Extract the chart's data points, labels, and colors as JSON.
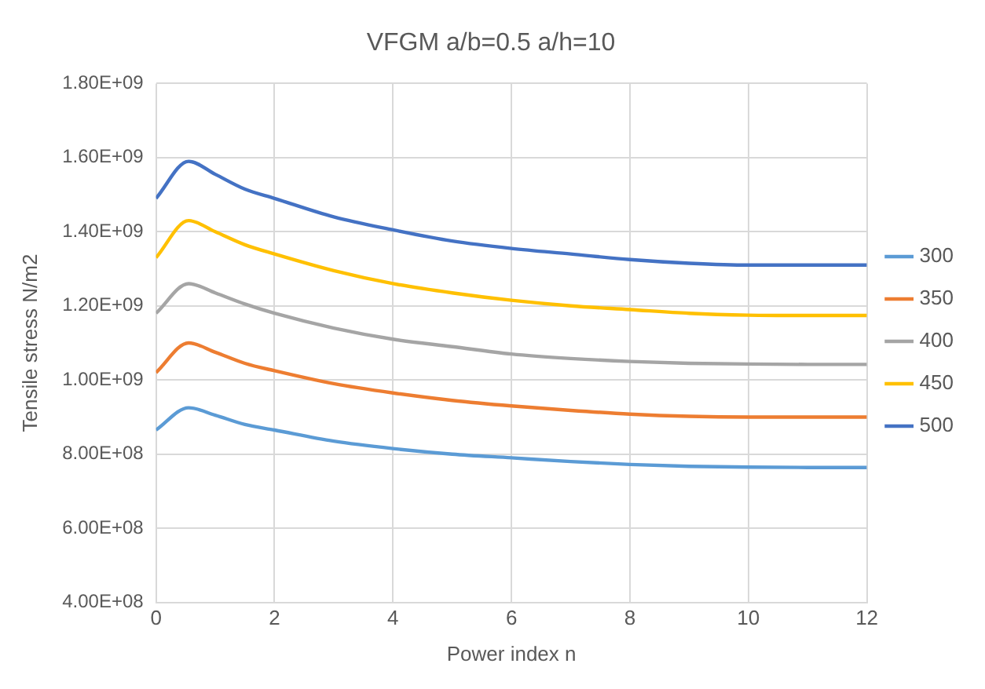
{
  "chart_data": {
    "type": "line",
    "title": "VFGM a/b=0.5 a/h=10",
    "xlabel": "Power index n",
    "ylabel": "Tensile stress N/m2",
    "x": [
      0,
      0.55,
      1,
      1.5,
      2,
      3,
      4,
      5,
      6,
      7,
      8,
      9,
      10,
      11,
      12
    ],
    "series": [
      {
        "name": "300",
        "color": "#5b9bd5",
        "values": [
          865000000,
          925000000,
          905000000,
          880000000,
          865000000,
          835000000,
          815000000,
          800000000,
          790000000,
          780000000,
          772000000,
          767000000,
          765000000,
          764000000,
          764000000
        ]
      },
      {
        "name": "350",
        "color": "#ed7d31",
        "values": [
          1020000000,
          1100000000,
          1075000000,
          1045000000,
          1025000000,
          990000000,
          965000000,
          945000000,
          930000000,
          918000000,
          908000000,
          902000000,
          900000000,
          900000000,
          900000000
        ]
      },
      {
        "name": "400",
        "color": "#a5a5a5",
        "values": [
          1180000000,
          1260000000,
          1235000000,
          1205000000,
          1180000000,
          1140000000,
          1110000000,
          1090000000,
          1070000000,
          1058000000,
          1050000000,
          1045000000,
          1043000000,
          1042000000,
          1042000000
        ]
      },
      {
        "name": "450",
        "color": "#ffc000",
        "values": [
          1330000000,
          1430000000,
          1400000000,
          1365000000,
          1340000000,
          1295000000,
          1260000000,
          1235000000,
          1215000000,
          1200000000,
          1190000000,
          1180000000,
          1175000000,
          1174000000,
          1174000000
        ]
      },
      {
        "name": "500",
        "color": "#4472c4",
        "values": [
          1490000000,
          1590000000,
          1555000000,
          1515000000,
          1490000000,
          1440000000,
          1405000000,
          1375000000,
          1355000000,
          1340000000,
          1325000000,
          1315000000,
          1310000000,
          1310000000,
          1310000000
        ]
      }
    ],
    "xlim": [
      0,
      12
    ],
    "xticks": [
      0,
      2,
      4,
      6,
      8,
      10,
      12
    ],
    "ylim": [
      400000000,
      1800000000
    ],
    "yticks": [
      {
        "value": 400000000,
        "label": "4.00E+08"
      },
      {
        "value": 600000000,
        "label": "6.00E+08"
      },
      {
        "value": 800000000,
        "label": "8.00E+08"
      },
      {
        "value": 1000000000,
        "label": "1.00E+09"
      },
      {
        "value": 1200000000,
        "label": "1.20E+09"
      },
      {
        "value": 1400000000,
        "label": "1.40E+09"
      },
      {
        "value": 1600000000,
        "label": "1.60E+09"
      },
      {
        "value": 1800000000,
        "label": "1.80E+09"
      }
    ],
    "grid": true,
    "legend": "right",
    "marker": "none",
    "line_style": "solid"
  }
}
